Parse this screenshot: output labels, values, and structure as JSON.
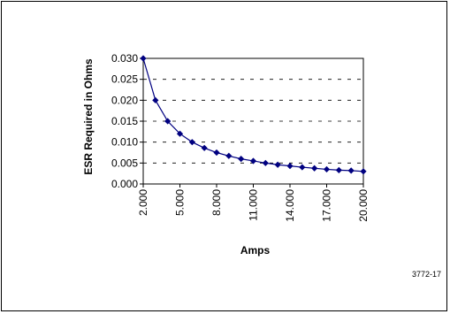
{
  "chart_data": {
    "type": "line",
    "xlabel": "Amps",
    "ylabel": "ESR Required in Ohms",
    "x": [
      2,
      3,
      4,
      5,
      6,
      7,
      8,
      9,
      10,
      11,
      12,
      13,
      14,
      15,
      16,
      17,
      18,
      19,
      20
    ],
    "series": [
      {
        "values": [
          0.03,
          0.02,
          0.015,
          0.012,
          0.01,
          0.0086,
          0.0075,
          0.0067,
          0.006,
          0.0055,
          0.005,
          0.0046,
          0.0043,
          0.004,
          0.00375,
          0.0035,
          0.0033,
          0.0032,
          0.003
        ],
        "color": "#000080"
      }
    ],
    "xlim": [
      2,
      20
    ],
    "ylim": [
      0,
      0.03
    ],
    "y_ticks": [
      "0.000",
      "0.005",
      "0.010",
      "0.015",
      "0.020",
      "0.025",
      "0.030"
    ],
    "x_ticks": [
      "2.000",
      "5.000",
      "8.000",
      "11.000",
      "14.000",
      "17.000",
      "20.000"
    ],
    "x_tick_values": [
      2,
      5,
      8,
      11,
      14,
      17,
      20
    ],
    "grid": "horizontal dashed",
    "legend": "none"
  },
  "figure_label": "3772-17"
}
